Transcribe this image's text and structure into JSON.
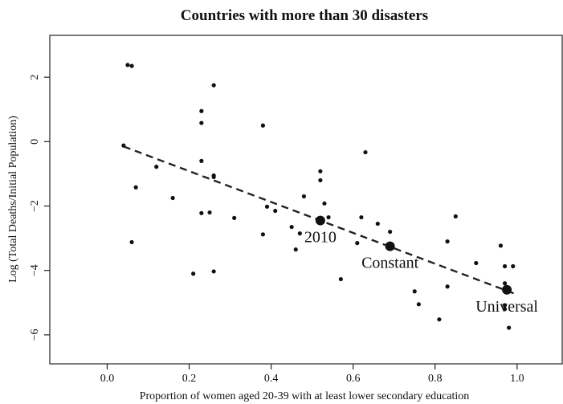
{
  "chart_data": {
    "type": "scatter",
    "title": "Countries with more than 30 disasters",
    "xlabel": "Proportion of women aged 20-39 with at least lower secondary education",
    "ylabel": "Log (Total Deaths/Initial Population)",
    "xlim": [
      -0.14,
      1.11
    ],
    "ylim": [
      -6.9,
      3.3
    ],
    "xticks": [
      0.0,
      0.2,
      0.4,
      0.6,
      0.8,
      1.0
    ],
    "xtick_labels": [
      "0.0",
      "0.2",
      "0.4",
      "0.6",
      "0.8",
      "1.0"
    ],
    "yticks": [
      2,
      0,
      -2,
      -4,
      -6
    ],
    "ytick_labels": [
      "2",
      "0",
      "−2",
      "−4",
      "−6"
    ],
    "grid": false,
    "points": [
      [
        0.05,
        2.38
      ],
      [
        0.06,
        2.35
      ],
      [
        0.04,
        -0.12
      ],
      [
        0.12,
        -0.78
      ],
      [
        0.07,
        -1.42
      ],
      [
        0.06,
        -3.12
      ],
      [
        0.16,
        -1.75
      ],
      [
        0.21,
        -4.1
      ],
      [
        0.23,
        0.95
      ],
      [
        0.23,
        0.58
      ],
      [
        0.23,
        -0.6
      ],
      [
        0.26,
        1.75
      ],
      [
        0.26,
        -1.05
      ],
      [
        0.26,
        -1.1
      ],
      [
        0.23,
        -2.22
      ],
      [
        0.25,
        -2.2
      ],
      [
        0.26,
        -4.03
      ],
      [
        0.31,
        -2.37
      ],
      [
        0.38,
        0.5
      ],
      [
        0.39,
        -2.02
      ],
      [
        0.38,
        -2.88
      ],
      [
        0.41,
        -2.15
      ],
      [
        0.45,
        -2.65
      ],
      [
        0.48,
        -1.7
      ],
      [
        0.47,
        -2.85
      ],
      [
        0.46,
        -3.35
      ],
      [
        0.52,
        -0.92
      ],
      [
        0.52,
        -1.2
      ],
      [
        0.53,
        -1.92
      ],
      [
        0.54,
        -2.35
      ],
      [
        0.57,
        -4.27
      ],
      [
        0.61,
        -3.15
      ],
      [
        0.63,
        -0.33
      ],
      [
        0.62,
        -2.35
      ],
      [
        0.66,
        -2.55
      ],
      [
        0.69,
        -2.8
      ],
      [
        0.75,
        -4.65
      ],
      [
        0.76,
        -5.05
      ],
      [
        0.81,
        -5.52
      ],
      [
        0.83,
        -4.5
      ],
      [
        0.83,
        -3.1
      ],
      [
        0.85,
        -2.32
      ],
      [
        0.9,
        -3.77
      ],
      [
        0.96,
        -3.23
      ],
      [
        0.97,
        -3.87
      ],
      [
        0.97,
        -5.08
      ],
      [
        0.97,
        -5.2
      ],
      [
        0.98,
        -5.78
      ],
      [
        0.99,
        -3.87
      ],
      [
        0.97,
        -4.4
      ]
    ],
    "fit_line": {
      "x": [
        0.04,
        1.0
      ],
      "y": [
        -0.15,
        -4.75
      ]
    },
    "highlighted_points": [
      {
        "label": "2010",
        "x": 0.52,
        "y": -2.45
      },
      {
        "label": "Constant",
        "x": 0.69,
        "y": -3.25
      },
      {
        "label": "Universal",
        "x": 0.975,
        "y": -4.6
      }
    ]
  }
}
